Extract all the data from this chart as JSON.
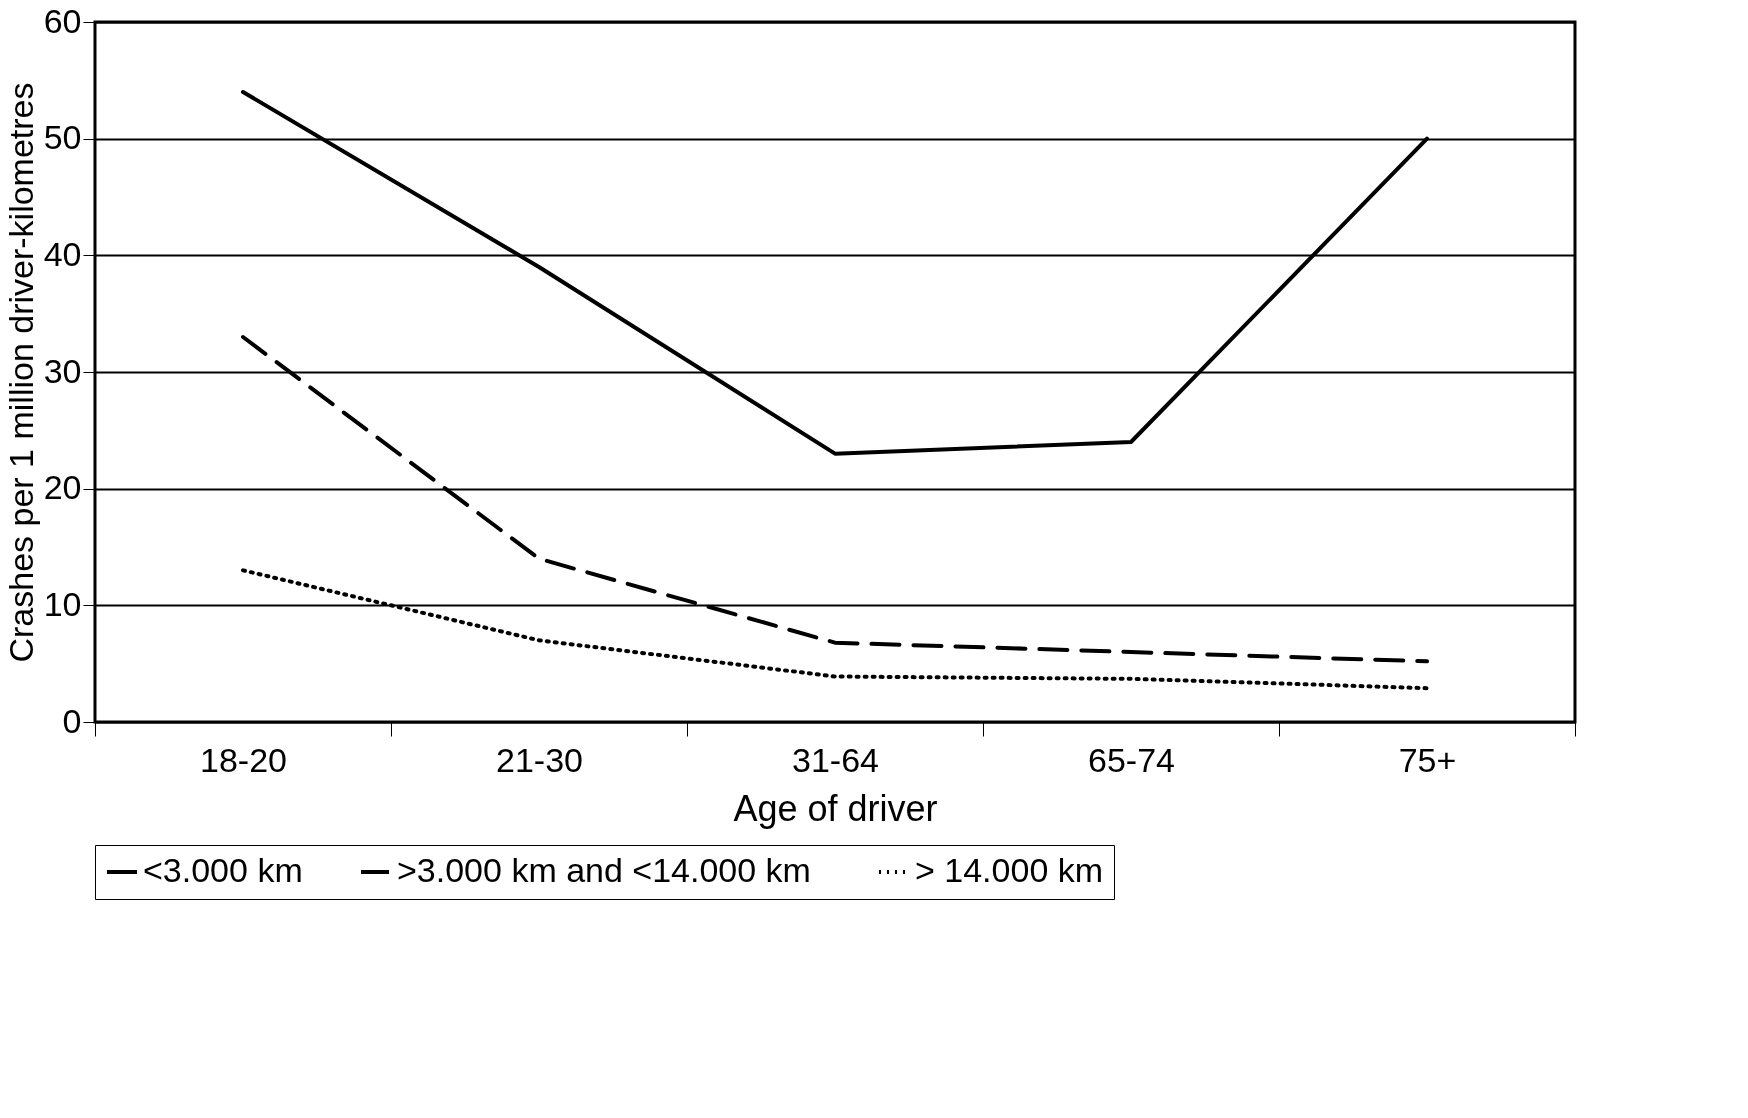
{
  "chart_data": {
    "type": "line",
    "xlabel": "Age of driver",
    "ylabel": "Crashes per 1 million driver-kilometres",
    "categories": [
      "18-20",
      "21-30",
      "31-64",
      "65-74",
      "75+"
    ],
    "ylim": [
      0,
      60
    ],
    "yticks": [
      0,
      10,
      20,
      30,
      40,
      50,
      60
    ],
    "grid": "y",
    "legend": "bottom",
    "series": [
      {
        "name": "<3.000 km",
        "color": "#000000",
        "line_style": "solid",
        "values": [
          54,
          39,
          23,
          24,
          50
        ]
      },
      {
        "name": ">3.000 km and  <14.000 km",
        "color": "#000000",
        "line_style": "dashed",
        "values": [
          33,
          14,
          6.8,
          6,
          5.2
        ]
      },
      {
        "name": "> 14.000 km",
        "color": "#000000",
        "line_style": "dotted",
        "values": [
          13,
          7,
          3.9,
          3.7,
          2.9
        ]
      }
    ]
  }
}
